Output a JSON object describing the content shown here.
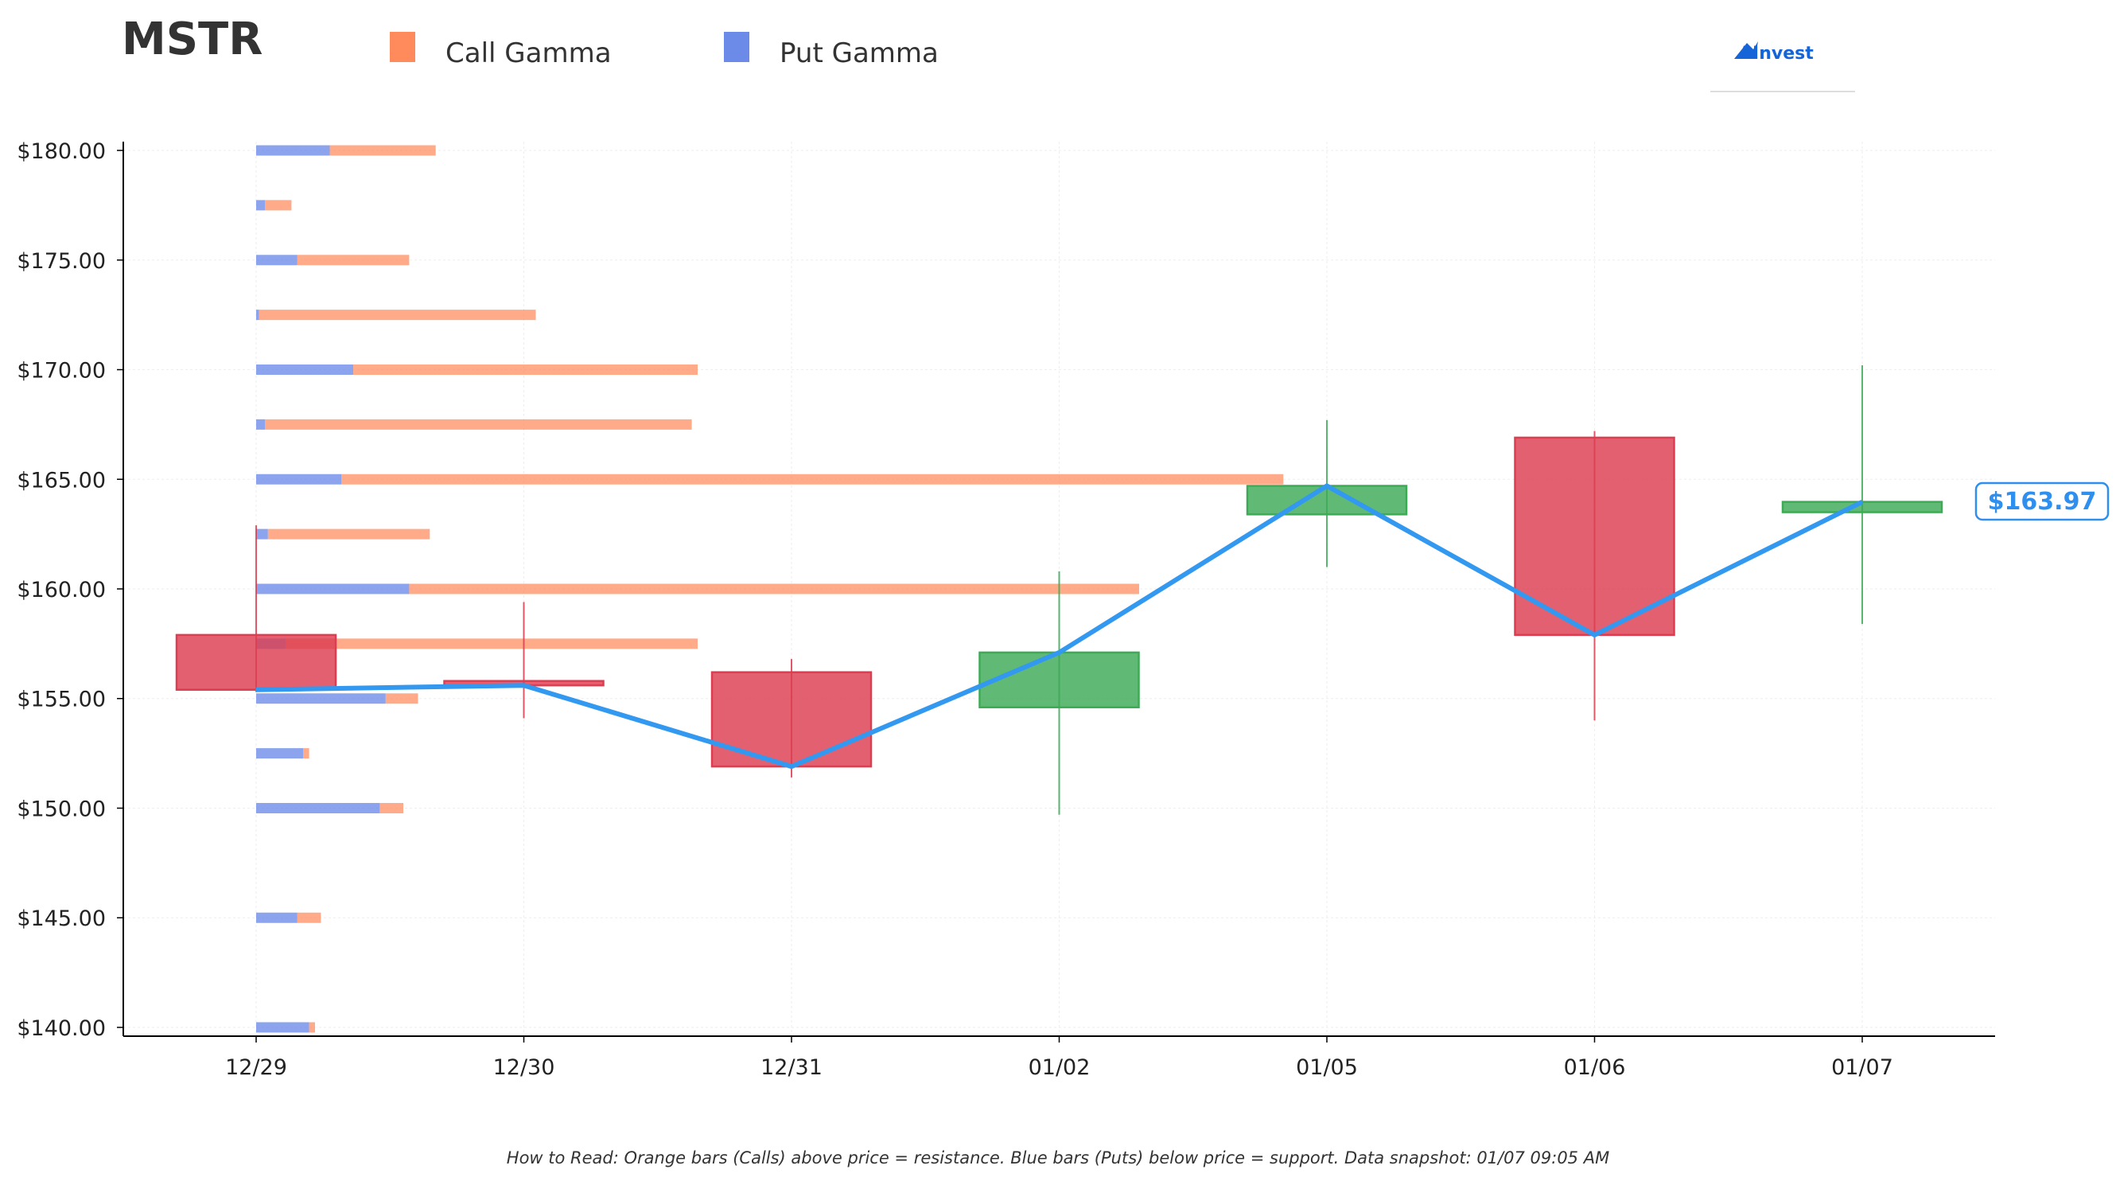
{
  "chart_data": {
    "type": "candlestick",
    "title": "MSTR",
    "legend": [
      {
        "name": "Call Gamma",
        "color": "#FF8A5C"
      },
      {
        "name": "Put Gamma",
        "color": "#6C8BE8"
      }
    ],
    "legend_placement": "top-left",
    "categories": [
      "12/29",
      "12/30",
      "12/31",
      "01/02",
      "01/05",
      "01/06",
      "01/07"
    ],
    "candles": [
      {
        "date": "12/29",
        "open": 157.9,
        "close": 155.4,
        "high": 162.9,
        "low": 155.3
      },
      {
        "date": "12/30",
        "open": 155.8,
        "close": 155.6,
        "high": 159.4,
        "low": 154.1
      },
      {
        "date": "12/31",
        "open": 156.2,
        "close": 151.9,
        "high": 156.8,
        "low": 151.4
      },
      {
        "date": "01/02",
        "open": 154.6,
        "close": 157.1,
        "high": 160.8,
        "low": 149.7
      },
      {
        "date": "01/05",
        "open": 163.4,
        "close": 164.7,
        "high": 167.7,
        "low": 161.0
      },
      {
        "date": "01/06",
        "open": 166.9,
        "close": 157.9,
        "high": 167.2,
        "low": 154.0
      },
      {
        "date": "01/07",
        "open": 163.5,
        "close": 163.97,
        "high": 170.2,
        "low": 158.4
      }
    ],
    "close_line": [
      155.4,
      155.6,
      151.9,
      157.1,
      164.7,
      157.9,
      163.97
    ],
    "gamma_by_strike": [
      {
        "strike": 180.0,
        "put": 0.25,
        "call": 0.36
      },
      {
        "strike": 177.5,
        "put": 0.03,
        "call": 0.09
      },
      {
        "strike": 175.0,
        "put": 0.14,
        "call": 0.38
      },
      {
        "strike": 172.5,
        "put": 0.01,
        "call": 0.94
      },
      {
        "strike": 170.0,
        "put": 0.33,
        "call": 1.17
      },
      {
        "strike": 167.5,
        "put": 0.03,
        "call": 1.45
      },
      {
        "strike": 165.0,
        "put": 0.29,
        "call": 3.2
      },
      {
        "strike": 162.5,
        "put": 0.04,
        "call": 0.55
      },
      {
        "strike": 160.0,
        "put": 0.52,
        "call": 2.48
      },
      {
        "strike": 157.5,
        "put": 0.1,
        "call": 1.4
      },
      {
        "strike": 155.0,
        "put": 0.44,
        "call": 0.11
      },
      {
        "strike": 152.5,
        "put": 0.16,
        "call": 0.02
      },
      {
        "strike": 150.0,
        "put": 0.42,
        "call": 0.08
      },
      {
        "strike": 145.0,
        "put": 0.14,
        "call": 0.08
      },
      {
        "strike": 140.0,
        "put": 0.18,
        "call": 0.02
      }
    ],
    "ylim": [
      139.6,
      180.4
    ],
    "yticks": [
      140,
      145,
      150,
      155,
      160,
      165,
      170,
      175,
      180
    ],
    "ytick_labels": [
      "$140.00",
      "$145.00",
      "$150.00",
      "$155.00",
      "$160.00",
      "$165.00",
      "$170.00",
      "$175.00",
      "$180.00"
    ],
    "grid": true,
    "colors": {
      "up": "#3DAA55",
      "down": "#DC3D50",
      "close_line": "#3399F0"
    },
    "last_price_label": "$163.97",
    "footnote": "How to Read: Orange bars (Calls) above price = resistance. Blue bars (Puts) below price = support. Data snapshot: 01/07 09:05 AM"
  },
  "logo": {
    "text": "AInvest"
  }
}
